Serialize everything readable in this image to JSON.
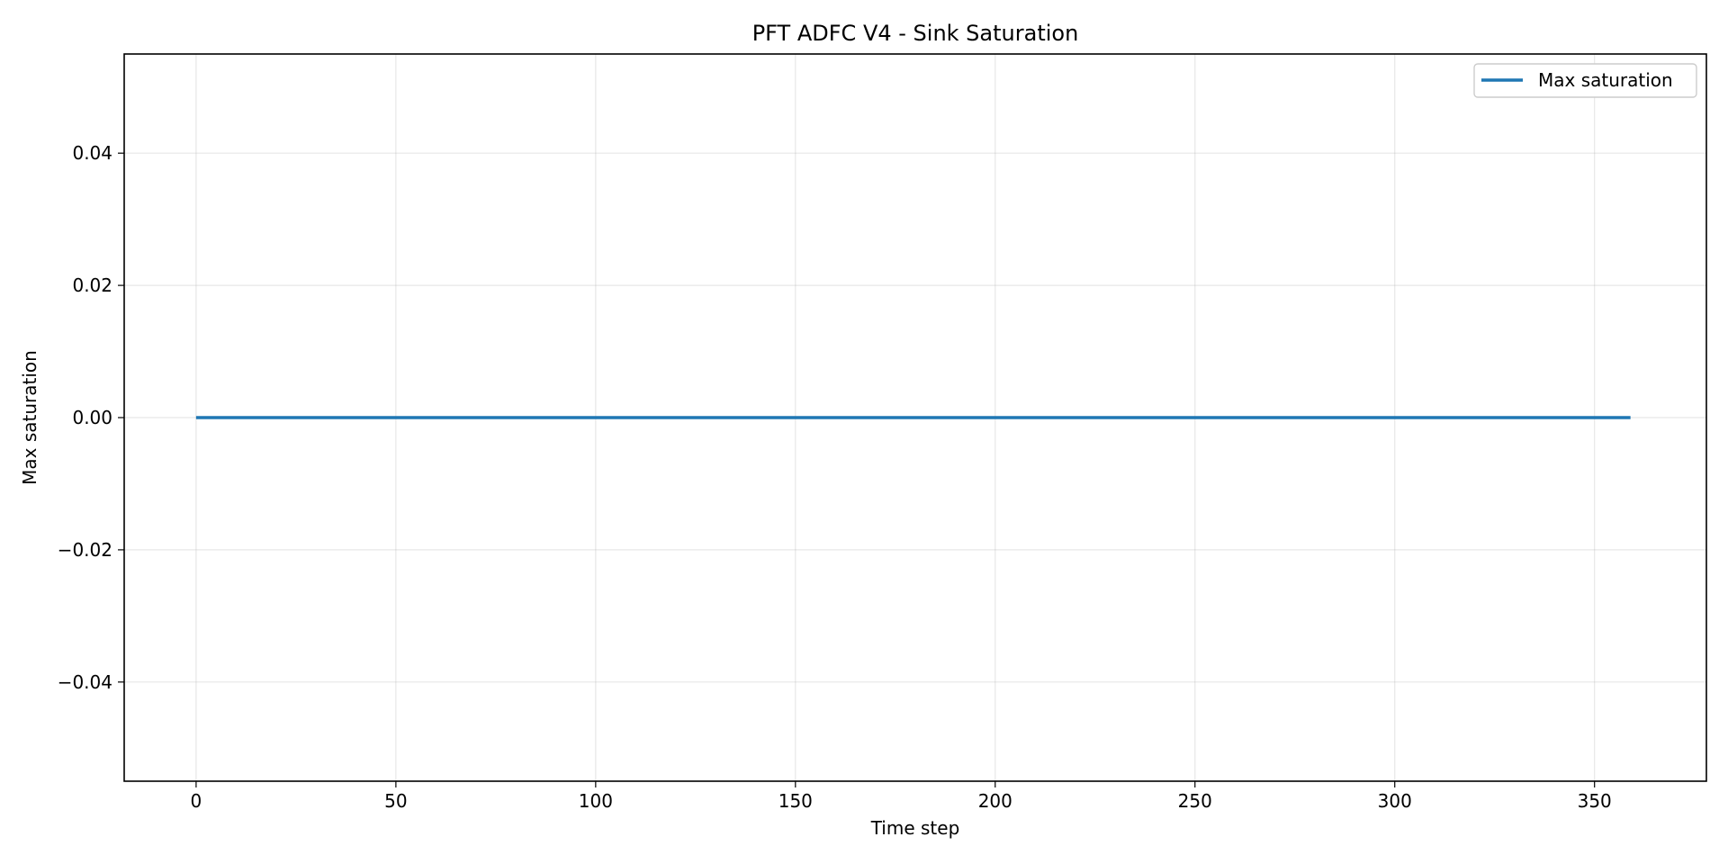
{
  "chart_data": {
    "type": "line",
    "title": "PFT ADFC V4 - Sink Saturation",
    "xlabel": "Time step",
    "ylabel": "Max saturation",
    "xlim": [
      -18,
      378
    ],
    "ylim": [
      -0.055,
      0.055
    ],
    "x_ticks": [
      0,
      50,
      100,
      150,
      200,
      250,
      300,
      350
    ],
    "x_tick_labels": [
      "0",
      "50",
      "100",
      "150",
      "200",
      "250",
      "300",
      "350"
    ],
    "y_ticks": [
      -0.04,
      -0.02,
      0.0,
      0.02,
      0.04
    ],
    "y_tick_labels": [
      "−0.04",
      "−0.02",
      "0.00",
      "0.02",
      "0.04"
    ],
    "grid": true,
    "legend_position": "top-right",
    "series": [
      {
        "name": "Max saturation",
        "color": "#1f77b4",
        "x": [
          0,
          359
        ],
        "y": [
          0.0,
          0.0
        ]
      }
    ]
  }
}
